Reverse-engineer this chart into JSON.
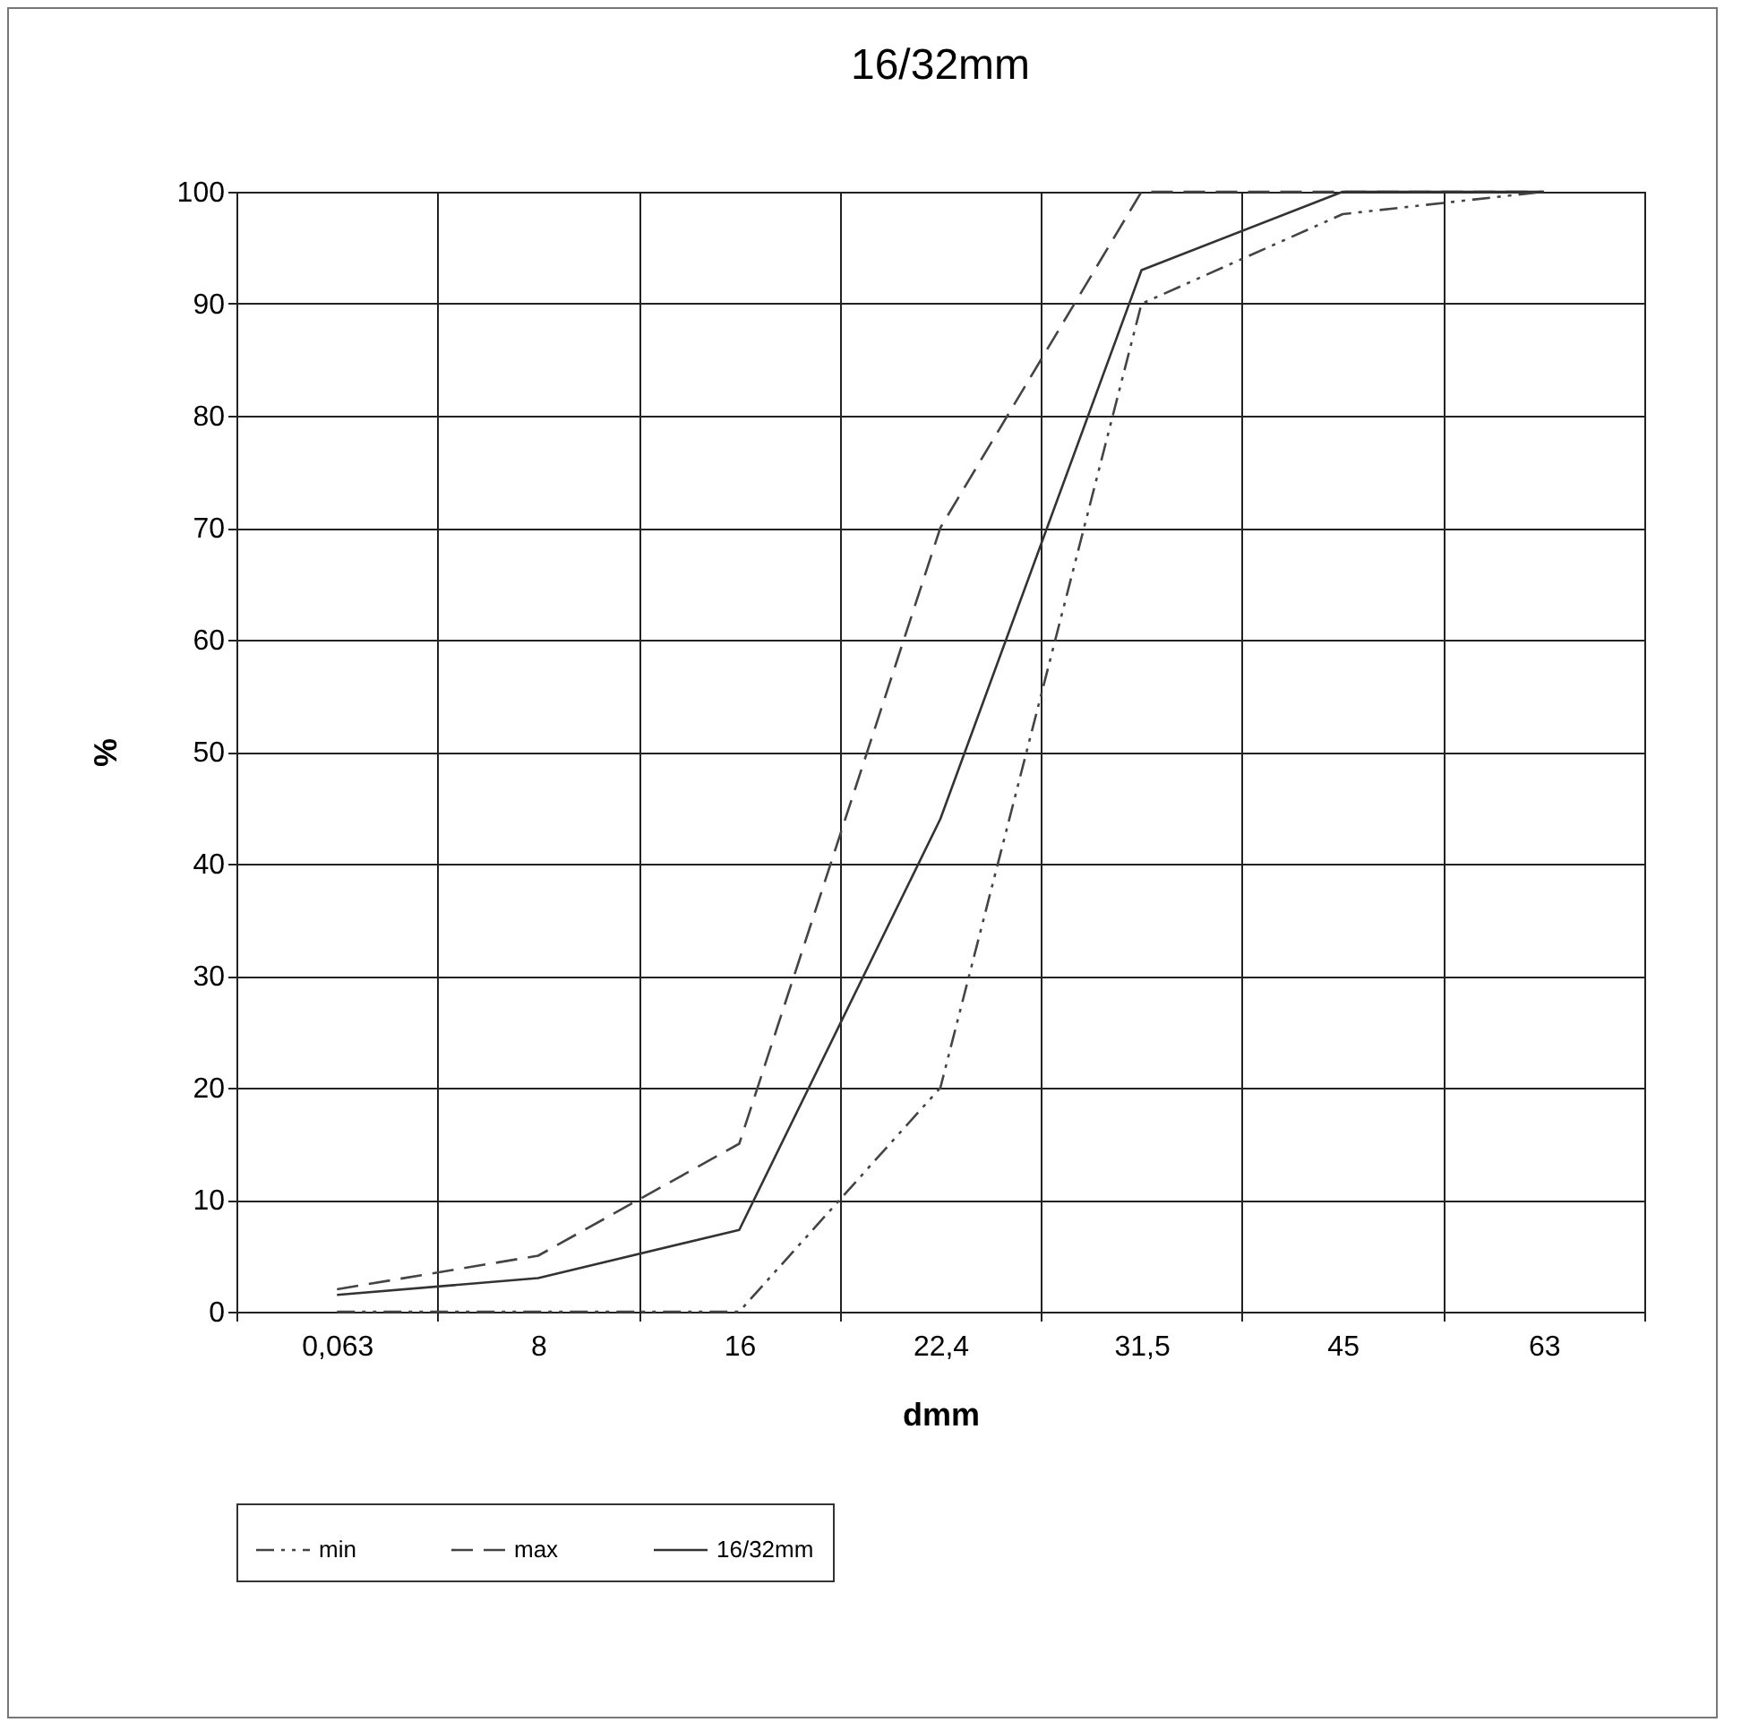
{
  "chart_data": {
    "type": "line",
    "title": "16/32mm",
    "xlabel": "dmm",
    "ylabel": "%",
    "categories": [
      "0,063",
      "8",
      "16",
      "22,4",
      "31,5",
      "45",
      "63"
    ],
    "series": [
      {
        "name": "min",
        "color": "#444444",
        "line_style": "dotted",
        "values": [
          0,
          0,
          0,
          20,
          90,
          98,
          100
        ]
      },
      {
        "name": "max",
        "color": "#444444",
        "line_style": "dashed",
        "values": [
          2,
          5,
          15,
          70,
          100,
          100,
          100
        ]
      },
      {
        "name": "16/32mm",
        "color": "#333333",
        "line_style": "solid",
        "values": [
          1.5,
          3,
          7.3,
          44,
          93,
          100,
          100
        ]
      }
    ],
    "ylim": [
      0,
      100
    ],
    "yticks": [
      0,
      10,
      20,
      30,
      40,
      50,
      60,
      70,
      80,
      90,
      100
    ],
    "grid": true,
    "legend": "bottom",
    "marker": "none"
  }
}
